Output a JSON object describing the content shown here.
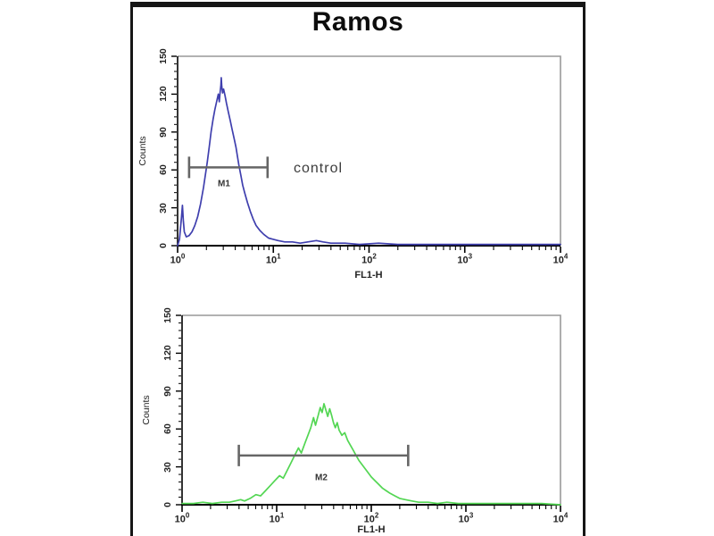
{
  "figure": {
    "title": "Ramos"
  },
  "chart_data": [
    {
      "id": "top-histogram",
      "type": "area",
      "xlabel": "FL1-H",
      "ylabel": "Counts",
      "x_scale": "log10",
      "x_range_decades": [
        0,
        4
      ],
      "x_tick_base": "10",
      "x_tick_exponents": [
        "0",
        "1",
        "2",
        "3",
        "4"
      ],
      "ylim": [
        0,
        150
      ],
      "y_ticks": [
        0,
        30,
        60,
        90,
        120,
        150
      ],
      "grid": false,
      "legend": "none",
      "series": [
        {
          "color": "#3f3fae",
          "points": [
            [
              0.0,
              0
            ],
            [
              0.02,
              5
            ],
            [
              0.04,
              22
            ],
            [
              0.05,
              32
            ],
            [
              0.06,
              20
            ],
            [
              0.07,
              11
            ],
            [
              0.09,
              7
            ],
            [
              0.12,
              8
            ],
            [
              0.15,
              11
            ],
            [
              0.18,
              16
            ],
            [
              0.21,
              23
            ],
            [
              0.24,
              33
            ],
            [
              0.27,
              46
            ],
            [
              0.29,
              56
            ],
            [
              0.31,
              66
            ],
            [
              0.33,
              78
            ],
            [
              0.35,
              90
            ],
            [
              0.37,
              100
            ],
            [
              0.39,
              108
            ],
            [
              0.41,
              115
            ],
            [
              0.425,
              120
            ],
            [
              0.435,
              114
            ],
            [
              0.445,
              122
            ],
            [
              0.452,
              127
            ],
            [
              0.456,
              133
            ],
            [
              0.462,
              126
            ],
            [
              0.47,
              121
            ],
            [
              0.48,
              124
            ],
            [
              0.495,
              119
            ],
            [
              0.51,
              113
            ],
            [
              0.53,
              106
            ],
            [
              0.55,
              99
            ],
            [
              0.57,
              92
            ],
            [
              0.59,
              85
            ],
            [
              0.61,
              78
            ],
            [
              0.625,
              71
            ],
            [
              0.64,
              64
            ],
            [
              0.66,
              56
            ],
            [
              0.68,
              48
            ],
            [
              0.7,
              42
            ],
            [
              0.73,
              34
            ],
            [
              0.76,
              27
            ],
            [
              0.79,
              21
            ],
            [
              0.82,
              16
            ],
            [
              0.86,
              12
            ],
            [
              0.9,
              9
            ],
            [
              0.95,
              6
            ],
            [
              1.0,
              5
            ],
            [
              1.05,
              4
            ],
            [
              1.12,
              3
            ],
            [
              1.2,
              3
            ],
            [
              1.28,
              2
            ],
            [
              1.36,
              3
            ],
            [
              1.45,
              4
            ],
            [
              1.52,
              3
            ],
            [
              1.6,
              2
            ],
            [
              1.75,
              2
            ],
            [
              1.9,
              1
            ],
            [
              2.1,
              2
            ],
            [
              2.3,
              1
            ],
            [
              2.55,
              1
            ],
            [
              2.8,
              1
            ],
            [
              3.1,
              1
            ],
            [
              3.4,
              1
            ],
            [
              3.7,
              1
            ],
            [
              4.0,
              1
            ]
          ]
        }
      ],
      "marker": {
        "label": "M1",
        "from_log10": 0.12,
        "to_log10": 0.94,
        "at_counts": 62
      },
      "annotation": {
        "text": "control"
      }
    },
    {
      "id": "bottom-histogram",
      "type": "area",
      "xlabel": "FL1-H",
      "ylabel": "Counts",
      "x_scale": "log10",
      "x_range_decades": [
        0,
        4
      ],
      "x_tick_base": "10",
      "x_tick_exponents": [
        "0",
        "1",
        "2",
        "3",
        "4"
      ],
      "ylim": [
        0,
        150
      ],
      "y_ticks": [
        0,
        30,
        60,
        90,
        120,
        150
      ],
      "grid": false,
      "legend": "none",
      "series": [
        {
          "color": "#53d653",
          "points": [
            [
              0.0,
              1
            ],
            [
              0.12,
              1
            ],
            [
              0.22,
              2
            ],
            [
              0.32,
              1
            ],
            [
              0.42,
              2
            ],
            [
              0.5,
              2
            ],
            [
              0.56,
              3
            ],
            [
              0.62,
              4
            ],
            [
              0.66,
              3
            ],
            [
              0.72,
              5
            ],
            [
              0.78,
              8
            ],
            [
              0.83,
              7
            ],
            [
              0.88,
              11
            ],
            [
              0.93,
              15
            ],
            [
              0.98,
              19
            ],
            [
              1.03,
              23
            ],
            [
              1.07,
              21
            ],
            [
              1.11,
              27
            ],
            [
              1.15,
              33
            ],
            [
              1.19,
              39
            ],
            [
              1.23,
              45
            ],
            [
              1.26,
              41
            ],
            [
              1.3,
              49
            ],
            [
              1.33,
              55
            ],
            [
              1.36,
              61
            ],
            [
              1.39,
              69
            ],
            [
              1.41,
              63
            ],
            [
              1.44,
              71
            ],
            [
              1.46,
              77
            ],
            [
              1.48,
              73
            ],
            [
              1.5,
              80
            ],
            [
              1.52,
              75
            ],
            [
              1.54,
              70
            ],
            [
              1.56,
              76
            ],
            [
              1.58,
              71
            ],
            [
              1.6,
              65
            ],
            [
              1.62,
              61
            ],
            [
              1.64,
              65
            ],
            [
              1.66,
              59
            ],
            [
              1.69,
              55
            ],
            [
              1.72,
              57
            ],
            [
              1.75,
              51
            ],
            [
              1.78,
              47
            ],
            [
              1.81,
              43
            ],
            [
              1.84,
              39
            ],
            [
              1.87,
              35
            ],
            [
              1.9,
              32
            ],
            [
              1.93,
              29
            ],
            [
              1.96,
              26
            ],
            [
              2.0,
              22
            ],
            [
              2.04,
              19
            ],
            [
              2.08,
              16
            ],
            [
              2.12,
              13
            ],
            [
              2.16,
              11
            ],
            [
              2.2,
              9
            ],
            [
              2.25,
              7
            ],
            [
              2.3,
              5
            ],
            [
              2.36,
              4
            ],
            [
              2.43,
              3
            ],
            [
              2.5,
              2
            ],
            [
              2.6,
              2
            ],
            [
              2.7,
              1
            ],
            [
              2.8,
              2
            ],
            [
              2.92,
              1
            ],
            [
              3.05,
              1
            ],
            [
              3.2,
              1
            ],
            [
              3.4,
              1
            ],
            [
              3.6,
              1
            ],
            [
              3.8,
              1
            ],
            [
              4.0,
              0
            ]
          ]
        }
      ],
      "marker": {
        "label": "M2",
        "from_log10": 0.6,
        "to_log10": 2.39,
        "at_counts": 39
      }
    }
  ],
  "colors": {
    "frame": "#161616",
    "axis": "#000000",
    "plot_border": "#999999",
    "marker_bar": "#666666",
    "text": "#222222"
  }
}
